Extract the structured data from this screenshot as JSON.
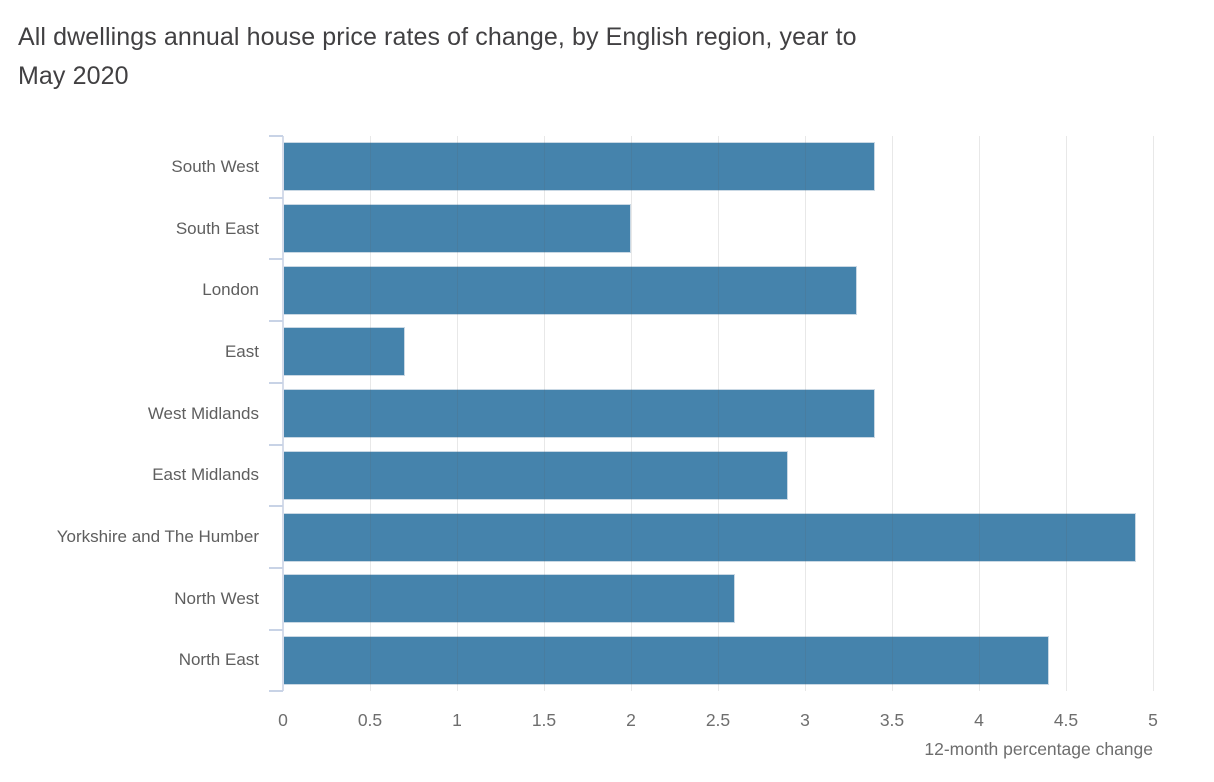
{
  "title_lines": [
    "All dwellings annual house price rates of change, by English region, year to",
    "May 2020"
  ],
  "colors": {
    "bar": "#4583ac",
    "bar_outline": "#c9d8e4",
    "title_text": "#414042",
    "category_label": "#5e5e5e",
    "tick_label": "#6e6e6e",
    "axis_line": "#d5dcea",
    "tick_mark": "#c8d3e6",
    "gridline": "rgba(90,90,90,0.14)",
    "background": "#ffffff"
  },
  "chart_data": {
    "type": "bar",
    "orientation": "horizontal",
    "title": "All dwellings annual house price rates of change, by English region, year to May 2020",
    "categories": [
      "South West",
      "South East",
      "London",
      "East",
      "West Midlands",
      "East Midlands",
      "Yorkshire and The Humber",
      "North West",
      "North East"
    ],
    "values": [
      3.4,
      2.0,
      3.3,
      0.7,
      3.4,
      2.9,
      4.9,
      2.6,
      4.4
    ],
    "xlabel": "12-month percentage change",
    "ylabel": "",
    "xlim": [
      0,
      5
    ],
    "xticks": [
      0,
      0.5,
      1,
      1.5,
      2,
      2.5,
      3,
      3.5,
      4,
      4.5,
      5
    ],
    "xtick_labels": [
      "0",
      "0.5",
      "1",
      "1.5",
      "2",
      "2.5",
      "3",
      "3.5",
      "4",
      "4.5",
      "5"
    ],
    "grid": true,
    "legend": false,
    "series_name": "All dwellings annual house price rate of change"
  }
}
